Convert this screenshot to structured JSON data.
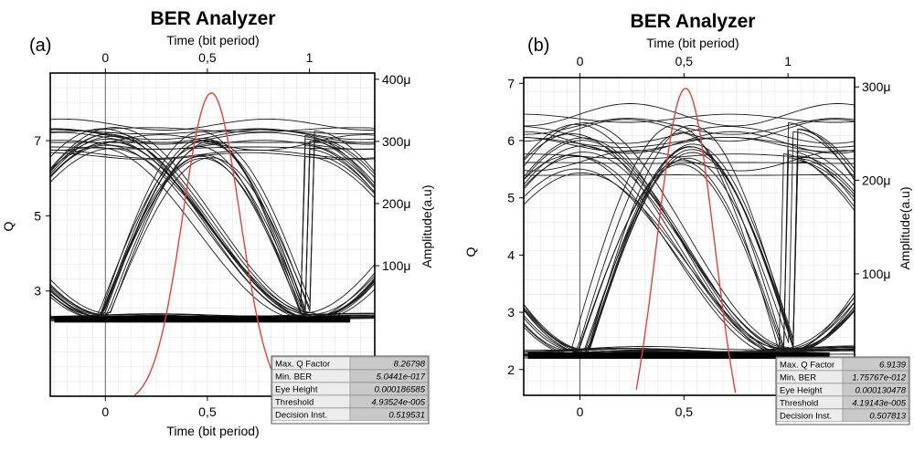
{
  "chart_data": [
    {
      "type": "line",
      "panel_label": "(a)",
      "title": "BER Analyzer",
      "top_xlabel": "Time (bit period)",
      "xlabel": "Time (bit period)",
      "ylabel": "Q",
      "y2label": "Amplitude(a.u)",
      "top_ticks": [
        "0",
        "0,5",
        "1"
      ],
      "bottom_ticks": [
        "0",
        "0,5",
        "1"
      ],
      "y_ticks": [
        "3",
        "5",
        "7"
      ],
      "y2_ticks": [
        "100μ",
        "200μ",
        "300μ",
        "400μ"
      ],
      "xlim": [
        -0.27,
        1.32
      ],
      "ylim_q": [
        0.2,
        8.8
      ],
      "ylim_amp": [
        -0.00011,
        0.00041
      ],
      "grid": true,
      "eye": {
        "low": 1.3e-05,
        "high": 0.000325,
        "high_spread": 5e-05,
        "low_spread": 1.8e-05,
        "traces": 46
      },
      "q_curve": {
        "peak_q": 8.26798,
        "peak_time": 0.519531,
        "width": 0.14
      },
      "results": [
        {
          "label": "Max. Q Factor",
          "value": "8.26798"
        },
        {
          "label": "Min. BER",
          "value": "5.0441e-017"
        },
        {
          "label": "Eye Height",
          "value": "0.000186585"
        },
        {
          "label": "Threshold",
          "value": "4.93524e-005"
        },
        {
          "label": "Decision Inst.",
          "value": "0.519531"
        }
      ]
    },
    {
      "type": "line",
      "panel_label": "(b)",
      "title": "BER Analyzer",
      "top_xlabel": "Time (bit period)",
      "xlabel": "",
      "ylabel": "Q",
      "y2label": "Amplitude(a.u)",
      "top_ticks": [
        "0",
        "0,5",
        "1"
      ],
      "bottom_ticks": [
        "0",
        "0,5",
        "1"
      ],
      "y_ticks": [
        "2",
        "3",
        "4",
        "5",
        "6",
        "7"
      ],
      "y2_ticks": [
        "100μ",
        "200μ",
        "300μ"
      ],
      "xlim": [
        -0.27,
        1.32
      ],
      "ylim_q": [
        1.55,
        7.1
      ],
      "ylim_amp": [
        -3e-05,
        0.00031
      ],
      "grid": true,
      "eye": {
        "low": 1.2e-05,
        "high": 0.000262,
        "high_spread": 5e-05,
        "low_spread": 1.6e-05,
        "traces": 46
      },
      "q_curve": {
        "peak_q": 6.9139,
        "peak_time": 0.507813,
        "width": 0.14
      },
      "results": [
        {
          "label": "Max. Q Factor",
          "value": "6.9139"
        },
        {
          "label": "Min. BER",
          "value": "1.75767e-012"
        },
        {
          "label": "Eye Height",
          "value": "0.000130478"
        },
        {
          "label": "Threshold",
          "value": "4.19143e-005"
        },
        {
          "label": "Decision Inst.",
          "value": "0.507813"
        }
      ]
    }
  ]
}
